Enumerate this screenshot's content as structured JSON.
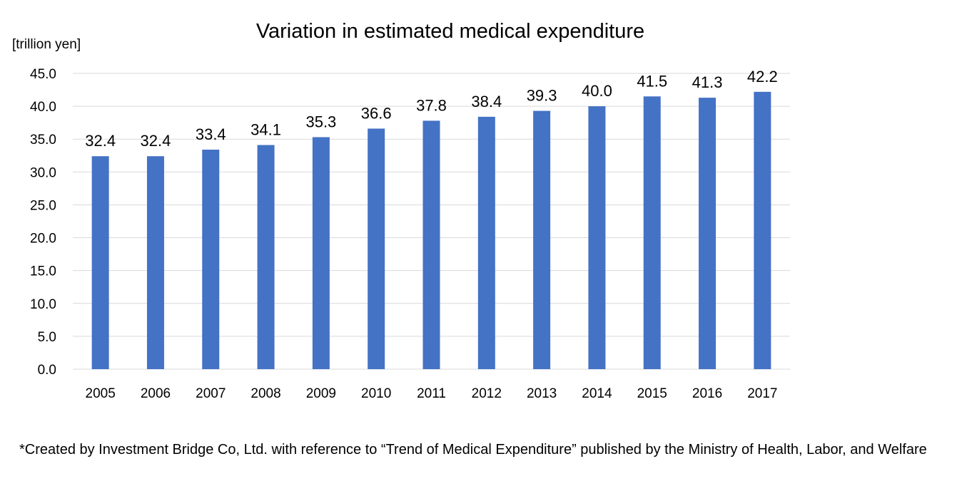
{
  "chart_data": {
    "type": "bar",
    "title": "Variation in estimated medical expenditure",
    "ylabel": "[trillion yen]",
    "xlabel": "",
    "categories": [
      "2005",
      "2006",
      "2007",
      "2008",
      "2009",
      "2010",
      "2011",
      "2012",
      "2013",
      "2014",
      "2015",
      "2016",
      "2017"
    ],
    "values": [
      32.4,
      32.4,
      33.4,
      34.1,
      35.3,
      36.6,
      37.8,
      38.4,
      39.3,
      40.0,
      41.5,
      41.3,
      42.2
    ],
    "value_labels": [
      "32.4",
      "32.4",
      "33.4",
      "34.1",
      "35.3",
      "36.6",
      "37.8",
      "38.4",
      "39.3",
      "40.0",
      "41.5",
      "41.3",
      "42.2"
    ],
    "ylim": [
      0,
      45
    ],
    "yticks": [
      "0.0",
      "5.0",
      "10.0",
      "15.0",
      "20.0",
      "25.0",
      "30.0",
      "35.0",
      "40.0",
      "45.0"
    ],
    "grid": true,
    "legend": "none",
    "bar_color": "#4472c4"
  },
  "footnote": {
    "text": "*Created by Investment Bridge Co, Ltd. with reference to “Trend of Medical Expenditure” published by the Ministry of Health, Labor, and Welfare"
  }
}
